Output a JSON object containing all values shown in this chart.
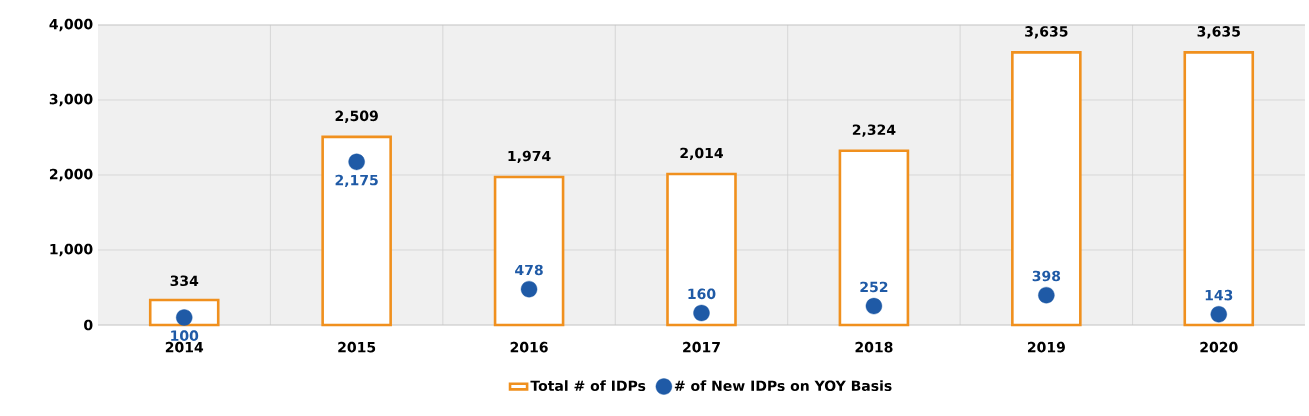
{
  "chart_data": {
    "type": "bar",
    "categories": [
      "2014",
      "2015",
      "2016",
      "2017",
      "2018",
      "2019",
      "2020"
    ],
    "series": [
      {
        "type": "bar",
        "name": "Total # of IDPs",
        "color": "#f0901e",
        "values": [
          334,
          2509,
          1974,
          2014,
          2324,
          3635,
          3635
        ],
        "value_labels": [
          "334",
          "2,509",
          "1,974",
          "2,014",
          "2,324",
          "3,635",
          "3,635"
        ]
      },
      {
        "type": "scatter",
        "name": "# of New IDPs on YOY Basis",
        "color": "#1f5aa6",
        "values": [
          100,
          2175,
          478,
          160,
          252,
          398,
          143
        ],
        "value_labels": [
          "100",
          "2,175",
          "478",
          "160",
          "252",
          "398",
          "143"
        ]
      }
    ],
    "ylim": [
      0,
      4000
    ],
    "yticks": [
      0,
      {
        "value": 1000,
        "label": "1,000"
      },
      {
        "value": 2000,
        "label": "2,000"
      },
      {
        "value": 3000,
        "label": "3,000"
      },
      {
        "value": 4000,
        "label": "4,000"
      }
    ],
    "grid": true,
    "legend": "bottom",
    "marker": "circle"
  }
}
